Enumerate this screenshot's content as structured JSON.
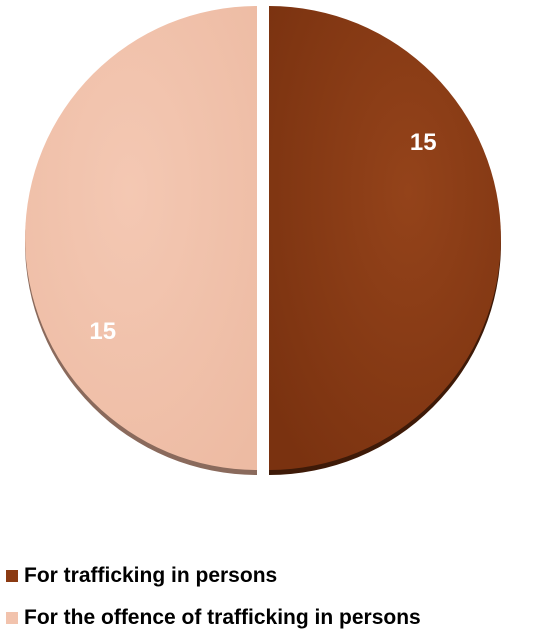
{
  "chart_data": {
    "type": "pie",
    "title": "",
    "slices": [
      {
        "label": "For trafficking in persons",
        "value": 15,
        "data_label": "15",
        "color": "#8B3A12"
      },
      {
        "label": "For the offence of trafficking in persons",
        "value": 15,
        "data_label": "15",
        "color": "#F2C3AD"
      }
    ],
    "legend_position": "bottom-left"
  }
}
